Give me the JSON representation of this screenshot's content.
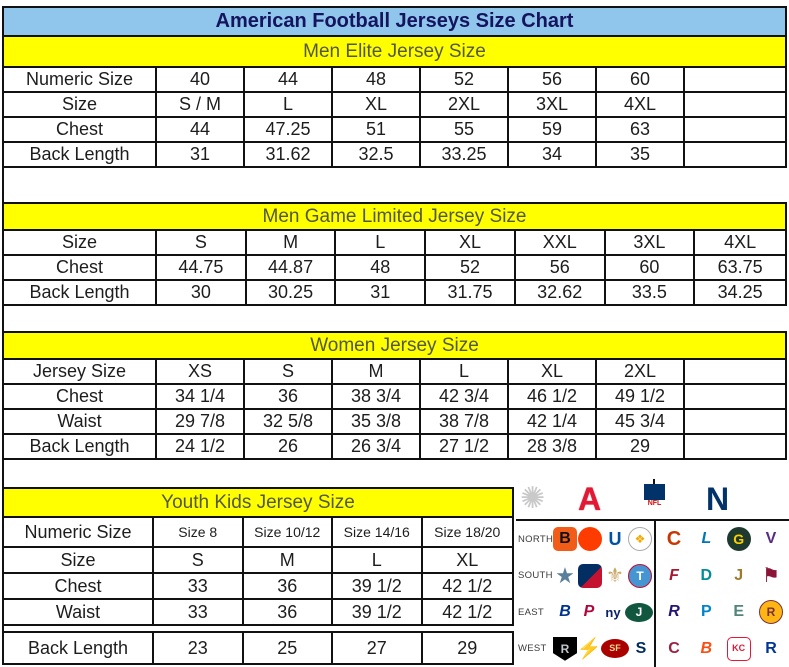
{
  "title": "American Football Jerseys Size Chart",
  "colors": {
    "title_bar_bg": "#90c6ec",
    "title_text": "#14145f",
    "section_header_bg": "#ffff00",
    "section_header_text": "#53573f",
    "table_border": "#111111",
    "afc_red": "#e31837",
    "nfc_blue": "#013369"
  },
  "tables": [
    {
      "id": "men-elite",
      "header": "Men Elite Jersey Size",
      "rows": [
        [
          "Numeric Size",
          "40",
          "44",
          "48",
          "52",
          "56",
          "60",
          ""
        ],
        [
          "Size",
          "S / M",
          "L",
          "XL",
          "2XL",
          "3XL",
          "4XL",
          ""
        ],
        [
          "Chest",
          "44",
          "47.25",
          "51",
          "55",
          "59",
          "63",
          ""
        ],
        [
          "Back Length",
          "31",
          "31.62",
          "32.5",
          "33.25",
          "34",
          "35",
          ""
        ]
      ]
    },
    {
      "id": "men-game-limited",
      "header": "Men Game Limited Jersey Size",
      "rows": [
        [
          "Size",
          "S",
          "M",
          "L",
          "XL",
          "XXL",
          "3XL",
          "4XL"
        ],
        [
          "Chest",
          "44.75",
          "44.87",
          "48",
          "52",
          "56",
          "60",
          "63.75"
        ],
        [
          "Back Length",
          "30",
          "30.25",
          "31",
          "31.75",
          "32.62",
          "33.5",
          "34.25"
        ]
      ]
    },
    {
      "id": "women",
      "header": "Women Jersey Size",
      "rows": [
        [
          "Jersey Size",
          "XS",
          "S",
          "M",
          "L",
          "XL",
          "2XL",
          ""
        ],
        [
          "Chest",
          "34 1/4",
          "36",
          "38 3/4",
          "42 3/4",
          "46 1/2",
          "49 1/2",
          ""
        ],
        [
          "Waist",
          "29 7/8",
          "32 5/8",
          "35 3/8",
          "38 7/8",
          "42 1/4",
          "45 3/4",
          ""
        ],
        [
          "Back Length",
          "24 1/2",
          "26",
          "26 3/4",
          "27 1/2",
          "28 3/8",
          "29",
          ""
        ]
      ]
    },
    {
      "id": "youth-kids",
      "header": "Youth Kids Jersey Size",
      "rows": [
        [
          "Numeric Size",
          "Size 8",
          "Size 10/12",
          "Size 14/16",
          "Size 18/20"
        ],
        [
          "Size",
          "S",
          "M",
          "L",
          "XL"
        ],
        [
          "Chest",
          "33",
          "36",
          "39 1/2",
          "42 1/2"
        ],
        [
          "Waist",
          "33",
          "36",
          "39 1/2",
          "42 1/2"
        ],
        [
          "Back Length",
          "23",
          "25",
          "27",
          "29"
        ]
      ]
    }
  ],
  "logos": {
    "conferences": [
      {
        "name": "starburst",
        "glyph": "✺"
      },
      {
        "name": "afc",
        "glyph": "A"
      },
      {
        "name": "nfl-shield",
        "glyph": "NFL"
      },
      {
        "name": "nfc",
        "glyph": "N"
      }
    ],
    "rows": [
      {
        "label": "NORTH",
        "afc": [
          {
            "name": "bengals",
            "glyph": "B",
            "fg": "#111111",
            "bg": "#f25c19",
            "shape": "rounded",
            "bold": true
          },
          {
            "name": "browns",
            "glyph": "",
            "bg": "#ff3c00",
            "shape": "circle"
          },
          {
            "name": "colts",
            "glyph": "U",
            "fg": "#0053a0",
            "bold": true,
            "size": 18
          },
          {
            "name": "steelers",
            "glyph": "❖",
            "fg": "#f2a900",
            "bg": "#ffffff",
            "shape": "circle",
            "border": "#aaaaaa",
            "size": 12
          }
        ],
        "nfc": [
          {
            "name": "bears",
            "glyph": "C",
            "fg": "#c83803",
            "bold": true,
            "size": 20
          },
          {
            "name": "lions",
            "glyph": "L",
            "fg": "#0076b6",
            "bold": true,
            "italic": true
          },
          {
            "name": "packers",
            "glyph": "G",
            "fg": "#ffcf00",
            "bg": "#1e3a2f",
            "shape": "circle",
            "bold": true,
            "size": 14
          },
          {
            "name": "vikings",
            "glyph": "V",
            "fg": "#582c83",
            "bold": true
          }
        ]
      },
      {
        "label": "SOUTH",
        "afc": [
          {
            "name": "cowboys",
            "glyph": "★",
            "fg": "#5a7f9a",
            "size": 22
          },
          {
            "name": "texans",
            "glyph": "",
            "bg": "linear-gradient(135deg,#032e62 55%,#c41230 45%)",
            "shape": "rounded"
          },
          {
            "name": "saints",
            "glyph": "⚜",
            "fg": "#c9a86a",
            "size": 20
          },
          {
            "name": "titans",
            "glyph": "T",
            "fg": "#ffffff",
            "bg": "#4495d1",
            "shape": "circle",
            "border": "#c60c30",
            "bold": true,
            "size": 12
          }
        ],
        "nfc": [
          {
            "name": "falcons",
            "glyph": "F",
            "fg": "#a71930",
            "bold": true,
            "italic": true
          },
          {
            "name": "dolphins",
            "glyph": "D",
            "fg": "#008e97",
            "bold": true
          },
          {
            "name": "jaguars",
            "glyph": "J",
            "fg": "#9f792c",
            "bold": true
          },
          {
            "name": "buccaneers",
            "glyph": "⚑",
            "fg": "#8a1538",
            "size": 20
          }
        ]
      },
      {
        "label": "EAST",
        "afc": [
          {
            "name": "bills",
            "glyph": "B",
            "fg": "#00338d",
            "bold": true,
            "italic": true
          },
          {
            "name": "patriots",
            "glyph": "P",
            "fg": "#b0063a",
            "bold": true,
            "italic": true
          },
          {
            "name": "giants",
            "glyph": "ny",
            "fg": "#0b2265",
            "bold": true,
            "size": 13
          },
          {
            "name": "jets",
            "glyph": "J",
            "fg": "#ffffff",
            "bg": "#115740",
            "shape": "oval",
            "bold": true,
            "size": 12
          }
        ],
        "nfc": [
          {
            "name": "ravens",
            "glyph": "R",
            "fg": "#241773",
            "bold": true,
            "italic": true
          },
          {
            "name": "panthers",
            "glyph": "P",
            "fg": "#0085ca",
            "bold": true
          },
          {
            "name": "eagles",
            "glyph": "E",
            "fg": "#50847c",
            "bold": true
          },
          {
            "name": "redskins",
            "glyph": "R",
            "fg": "#773141",
            "bg": "#ffb612",
            "shape": "circle",
            "border": "#773141",
            "bold": true,
            "size": 12
          }
        ]
      },
      {
        "label": "WEST",
        "afc": [
          {
            "name": "raiders",
            "glyph": "R",
            "fg": "#c0c6c9",
            "bg": "#000000",
            "shape": "shield",
            "bold": true,
            "size": 12
          },
          {
            "name": "chargers",
            "glyph": "⚡",
            "fg": "#ffc20e",
            "size": 20
          },
          {
            "name": "forty-niners",
            "glyph": "SF",
            "fg": "#ffd78e",
            "bg": "#aa0000",
            "shape": "oval",
            "bold": true,
            "size": 9
          },
          {
            "name": "seahawks",
            "glyph": "S",
            "fg": "#002a5c",
            "bold": true
          }
        ],
        "nfc": [
          {
            "name": "cardinals",
            "glyph": "C",
            "fg": "#97233f",
            "bold": true
          },
          {
            "name": "broncos",
            "glyph": "B",
            "fg": "#fb4f14",
            "bold": true,
            "italic": true
          },
          {
            "name": "chiefs",
            "glyph": "KC",
            "fg": "#e31837",
            "bg": "#ffffff",
            "shape": "rounded",
            "border": "#e31837",
            "bold": true,
            "size": 9
          },
          {
            "name": "rams",
            "glyph": "R",
            "fg": "#003594",
            "bold": true
          }
        ]
      }
    ]
  }
}
